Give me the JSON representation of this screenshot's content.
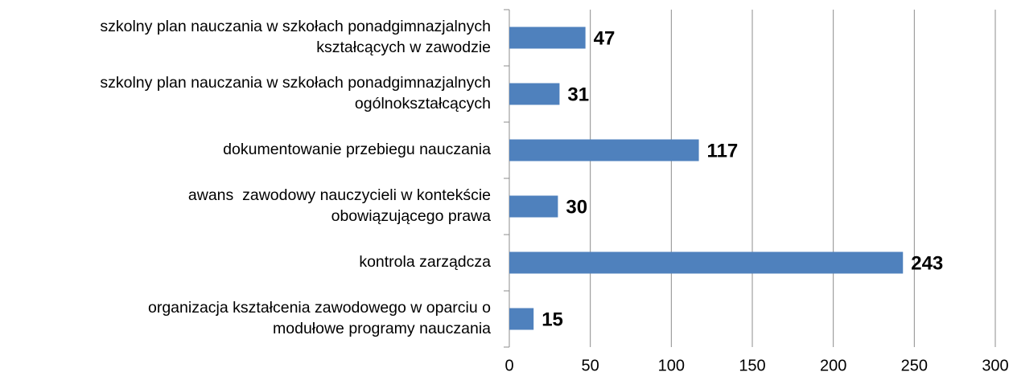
{
  "chart_data": {
    "type": "hbar",
    "categories": [
      [
        "szkolny plan nauczania w szkołach ponadgimnazjalnych",
        "kształcących w zawodzie"
      ],
      [
        "szkolny plan nauczania w szkołach ponadgimnazjalnych",
        "ogólnokształcących"
      ],
      [
        "dokumentowanie przebiegu nauczania"
      ],
      [
        "awans  zawodowy nauczycieli w kontekście",
        "obowiązującego prawa"
      ],
      [
        "kontrola zarządcza"
      ],
      [
        "organizacja kształcenia zawodowego w oparciu o",
        "modułowe programy nauczania"
      ]
    ],
    "values": [
      47,
      31,
      117,
      30,
      243,
      15
    ],
    "color": "#4f81bd",
    "xlim": [
      0,
      300
    ],
    "xticks": [
      0,
      50,
      100,
      150,
      200,
      250,
      300
    ],
    "grid": true
  }
}
